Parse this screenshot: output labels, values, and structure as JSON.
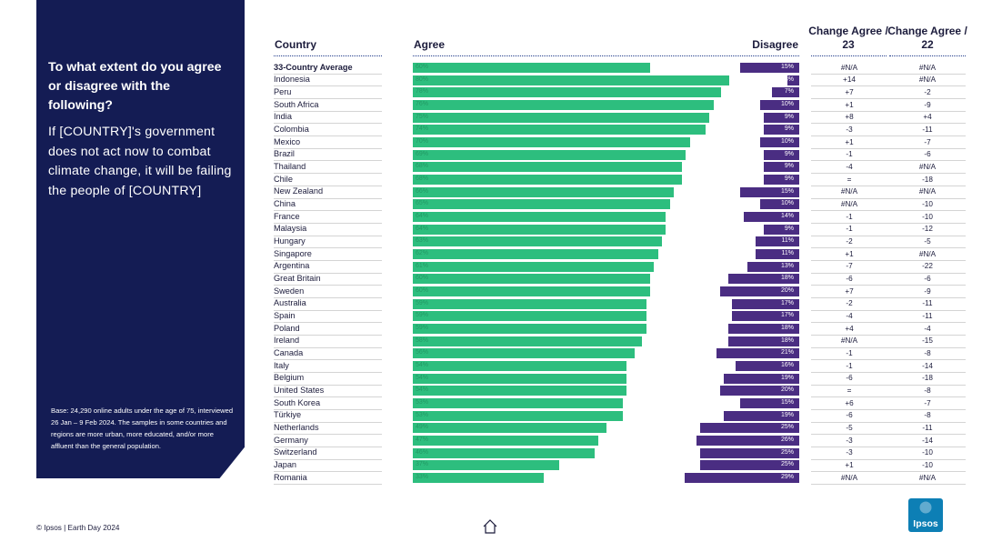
{
  "side": {
    "question": "To what extent do you agree or disagree with the following?",
    "statement": "If [COUNTRY]'s government does not act now to combat climate change, it will be failing the people of [COUNTRY]",
    "base": "Base: 24,290 online adults under the age of 75, interviewed 26 Jan – 9 Feb 2024. The samples in some countries and regions are more urban, more educated, and/or more affluent than the general population."
  },
  "headers": {
    "country": "Country",
    "agree": "Agree",
    "disagree": "Disagree",
    "change23": "Change Agree / 23",
    "change22": "Change Agree / 22"
  },
  "footer": {
    "text": "© Ipsos | Earth Day 2024"
  },
  "logo": {
    "text": "Ipsos",
    "color": "#0d7fb5"
  },
  "colors": {
    "agree": "#2dbe7e",
    "disagree": "#4a2d82",
    "panel": "#141c54"
  },
  "icons": {
    "home": "home-icon"
  },
  "chart_data": {
    "type": "bar",
    "categories": [
      "33-Country Average",
      "Indonesia",
      "Peru",
      "South Africa",
      "India",
      "Colombia",
      "Mexico",
      "Brazil",
      "Thailand",
      "Chile",
      "New Zealand",
      "China",
      "France",
      "Malaysia",
      "Hungary",
      "Singapore",
      "Argentina",
      "Great Britain",
      "Sweden",
      "Australia",
      "Spain",
      "Poland",
      "Ireland",
      "Canada",
      "Italy",
      "Belgium",
      "United States",
      "South Korea",
      "Türkiye",
      "Netherlands",
      "Germany",
      "Switzerland",
      "Japan",
      "Romania"
    ],
    "series": [
      {
        "name": "Agree",
        "values": [
          60,
          80,
          78,
          76,
          75,
          74,
          70,
          69,
          68,
          68,
          66,
          65,
          64,
          64,
          63,
          62,
          61,
          60,
          60,
          59,
          59,
          59,
          58,
          56,
          54,
          54,
          54,
          53,
          53,
          49,
          47,
          46,
          37,
          33
        ]
      },
      {
        "name": "Disagree",
        "values": [
          15,
          3,
          7,
          10,
          9,
          9,
          10,
          9,
          9,
          9,
          15,
          10,
          14,
          9,
          11,
          11,
          13,
          18,
          20,
          17,
          17,
          18,
          18,
          21,
          16,
          19,
          20,
          15,
          19,
          25,
          26,
          25,
          25,
          29
        ]
      }
    ],
    "change_23": [
      "#N/A",
      "+14",
      "+7",
      "+1",
      "+8",
      "-3",
      "+1",
      "-1",
      "-4",
      "=",
      "#N/A",
      "#N/A",
      "-1",
      "-1",
      "-2",
      "+1",
      "-7",
      "-6",
      "+7",
      "-2",
      "-4",
      "+4",
      "#N/A",
      "-1",
      "-1",
      "-6",
      "=",
      "+6",
      "-6",
      "-5",
      "-3",
      "-3",
      "+1",
      "#N/A"
    ],
    "change_22": [
      "#N/A",
      "#N/A",
      "-2",
      "-9",
      "+4",
      "-11",
      "-7",
      "-6",
      "#N/A",
      "-18",
      "#N/A",
      "-10",
      "-10",
      "-12",
      "-5",
      "#N/A",
      "-22",
      "-6",
      "-9",
      "-11",
      "-11",
      "-4",
      "-15",
      "-8",
      "-14",
      "-18",
      "-8",
      "-7",
      "-8",
      "-11",
      "-14",
      "-10",
      "-10",
      "#N/A"
    ]
  }
}
